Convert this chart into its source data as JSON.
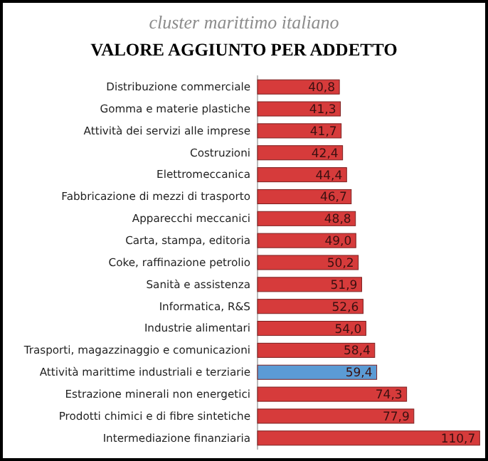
{
  "chart_data": {
    "type": "bar",
    "orientation": "horizontal",
    "subtitle": "cluster marittimo italiano",
    "title": "VALORE AGGIUNTO PER ADDETTO",
    "categories": [
      "Distribuzione commerciale",
      "Gomma  e materie plastiche",
      "Attività dei servizi alle imprese",
      "Costruzioni",
      "Elettromeccanica",
      "Fabbricazione di mezzi di trasporto",
      "Apparecchi meccanici",
      "Carta, stampa, editoria",
      "Coke, raffinazione petrolio",
      "Sanità e assistenza",
      "Informatica, R&S",
      "Industrie alimentari",
      "Trasporti, magazzinaggio e comunicazioni",
      "Attività marittime industriali e terziarie",
      "Estrazione minerali non energetici",
      "Prodotti chimici e di fibre sintetiche",
      "Intermediazione finanziaria"
    ],
    "values": [
      40.8,
      41.3,
      41.7,
      42.4,
      44.4,
      46.7,
      48.8,
      49.0,
      50.2,
      51.9,
      52.6,
      54.0,
      58.4,
      59.4,
      74.3,
      77.9,
      110.7
    ],
    "value_labels": [
      "40,8",
      "41,3",
      "41,7",
      "42,4",
      "44,4",
      "46,7",
      "48,8",
      "49,0",
      "50,2",
      "51,9",
      "52,6",
      "54,0",
      "58,4",
      "59,4",
      "74,3",
      "77,9",
      "110,7"
    ],
    "colors": [
      "#d63b3b",
      "#d63b3b",
      "#d63b3b",
      "#d63b3b",
      "#d63b3b",
      "#d63b3b",
      "#d63b3b",
      "#d63b3b",
      "#d63b3b",
      "#d63b3b",
      "#d63b3b",
      "#d63b3b",
      "#d63b3b",
      "#5b9bd5",
      "#d63b3b",
      "#d63b3b",
      "#d63b3b"
    ],
    "xlim": [
      0,
      112
    ],
    "tick_labels": "y"
  }
}
